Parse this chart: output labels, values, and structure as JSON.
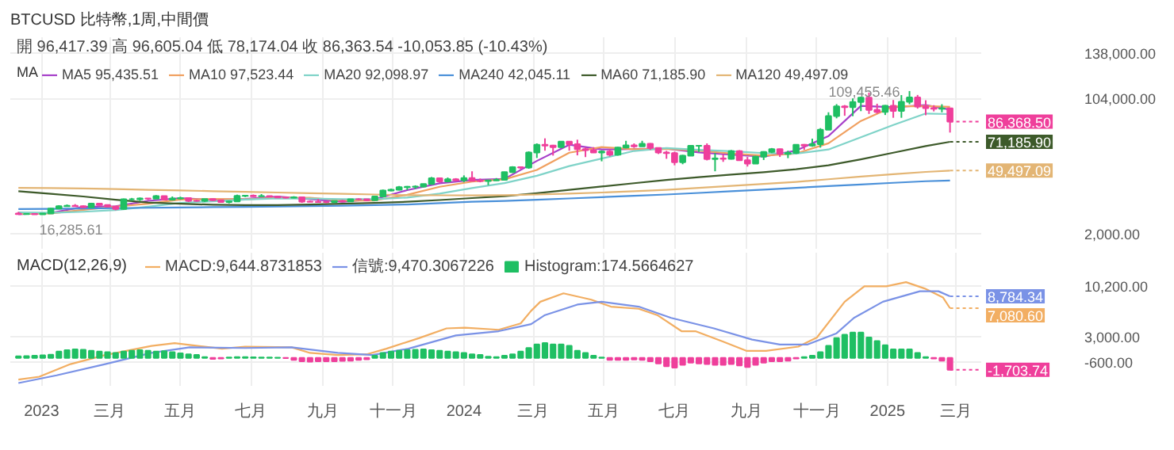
{
  "chart_data": [
    {
      "type": "candlestick",
      "title": "BTCUSD 比特幣,1周,中間價",
      "legend_title": "MA",
      "legend": "top left",
      "grid": true,
      "tick_labels": "y",
      "xlim": [
        "2022-12-05",
        "2025-03-23"
      ],
      "ylim": [
        -10000,
        150000
      ],
      "xticks": [
        {
          "value": "2023-01-01",
          "label": null
        },
        {
          "value": "2023-03-01",
          "label": null
        },
        {
          "value": "2023-05-01",
          "label": null
        },
        {
          "value": "2023-07-01",
          "label": null
        },
        {
          "value": "2023-09-01",
          "label": null
        },
        {
          "value": "2023-11-01",
          "label": null
        },
        {
          "value": "2024-01-01",
          "label": null
        },
        {
          "value": "2024-03-01",
          "label": null
        },
        {
          "value": "2024-05-01",
          "label": null
        },
        {
          "value": "2024-07-01",
          "label": null
        },
        {
          "value": "2024-09-01",
          "label": null
        },
        {
          "value": "2024-11-01",
          "label": null
        },
        {
          "value": "2025-01-01",
          "label": null
        },
        {
          "value": "2025-03-01",
          "label": null
        }
      ],
      "yticks": [
        {
          "value": 2000,
          "label": "2,000.00"
        },
        {
          "value": 104000,
          "label": "104,000.00"
        },
        {
          "value": 138000,
          "label": "138,000.00"
        }
      ],
      "annotations": [
        "開 96,417.39 高 96,605.04 低 78,174.04 收 86,363.54 -10,053.85 (-10.43%)",
        {
          "text": "109,455.46",
          "x": "2025-01-20",
          "y": 109455.46
        },
        {
          "text": "16,285.61",
          "x": "2022-12-19",
          "y": 16285.61
        },
        {
          "text": "86,368.50",
          "x": "2025-02-24",
          "y": 86368.5
        },
        {
          "text": "71,185.90",
          "x": "2025-02-24",
          "y": 71185.9
        },
        {
          "text": "49,497.09",
          "x": "2025-02-24",
          "y": 49497.09
        }
      ],
      "x": [
        "2022-12-12",
        "2022-12-19",
        "2022-12-26",
        "2023-01-02",
        "2023-01-09",
        "2023-01-16",
        "2023-01-23",
        "2023-01-30",
        "2023-02-06",
        "2023-02-13",
        "2023-02-20",
        "2023-02-27",
        "2023-03-06",
        "2023-03-13",
        "2023-03-20",
        "2023-03-27",
        "2023-04-03",
        "2023-04-10",
        "2023-04-17",
        "2023-04-24",
        "2023-05-01",
        "2023-05-08",
        "2023-05-15",
        "2023-05-22",
        "2023-05-29",
        "2023-06-05",
        "2023-06-12",
        "2023-06-19",
        "2023-06-26",
        "2023-07-03",
        "2023-07-10",
        "2023-07-17",
        "2023-07-24",
        "2023-07-31",
        "2023-08-07",
        "2023-08-14",
        "2023-08-21",
        "2023-08-28",
        "2023-09-04",
        "2023-09-11",
        "2023-09-18",
        "2023-09-25",
        "2023-10-02",
        "2023-10-09",
        "2023-10-16",
        "2023-10-23",
        "2023-10-30",
        "2023-11-06",
        "2023-11-13",
        "2023-11-20",
        "2023-11-27",
        "2023-12-04",
        "2023-12-11",
        "2023-12-18",
        "2023-12-25",
        "2024-01-01",
        "2024-01-08",
        "2024-01-15",
        "2024-01-22",
        "2024-01-29",
        "2024-02-05",
        "2024-02-12",
        "2024-02-19",
        "2024-02-26",
        "2024-03-04",
        "2024-03-11",
        "2024-03-18",
        "2024-03-25",
        "2024-04-01",
        "2024-04-08",
        "2024-04-15",
        "2024-04-22",
        "2024-04-29",
        "2024-05-06",
        "2024-05-13",
        "2024-05-20",
        "2024-05-27",
        "2024-06-03",
        "2024-06-10",
        "2024-06-17",
        "2024-06-24",
        "2024-07-01",
        "2024-07-08",
        "2024-07-15",
        "2024-07-22",
        "2024-07-29",
        "2024-08-05",
        "2024-08-12",
        "2024-08-19",
        "2024-08-26",
        "2024-09-02",
        "2024-09-09",
        "2024-09-16",
        "2024-09-23",
        "2024-09-30",
        "2024-10-07",
        "2024-10-14",
        "2024-10-21",
        "2024-10-28",
        "2024-11-04",
        "2024-11-11",
        "2024-11-18",
        "2024-11-25",
        "2024-12-02",
        "2024-12-09",
        "2024-12-16",
        "2024-12-23",
        "2024-12-30",
        "2025-01-06",
        "2025-01-13",
        "2025-01-20",
        "2025-01-27",
        "2025-02-03",
        "2025-02-10",
        "2025-02-17",
        "2025-02-24"
      ],
      "ohlc": [
        [
          17100,
          18400,
          16600,
          16750
        ],
        [
          16750,
          17000,
          16285.61,
          16840
        ],
        [
          16840,
          16970,
          16330,
          16610
        ],
        [
          16610,
          17400,
          16550,
          17130
        ],
        [
          17130,
          21260,
          17100,
          20870
        ],
        [
          20870,
          23370,
          20400,
          22700
        ],
        [
          22700,
          23950,
          22300,
          23030
        ],
        [
          23030,
          24250,
          22500,
          22760
        ],
        [
          22760,
          23200,
          21500,
          21770
        ],
        [
          21770,
          25250,
          21400,
          24630
        ],
        [
          24630,
          25100,
          23100,
          23550
        ],
        [
          23550,
          23900,
          21900,
          22430
        ],
        [
          22430,
          22600,
          19600,
          20630
        ],
        [
          20630,
          28400,
          20100,
          27950
        ],
        [
          27950,
          28900,
          26700,
          27950
        ],
        [
          27950,
          29200,
          26600,
          28450
        ],
        [
          28450,
          28800,
          27300,
          28320
        ],
        [
          28320,
          31000,
          28200,
          30300
        ],
        [
          30300,
          30500,
          27200,
          27590
        ],
        [
          27590,
          30000,
          26950,
          28470
        ],
        [
          28470,
          29850,
          27700,
          28850
        ],
        [
          28850,
          29000,
          25800,
          26780
        ],
        [
          26780,
          27600,
          26100,
          26750
        ],
        [
          26750,
          28200,
          25900,
          28080
        ],
        [
          28080,
          28400,
          26600,
          27120
        ],
        [
          27120,
          27200,
          25350,
          25840
        ],
        [
          25840,
          26800,
          24800,
          26340
        ],
        [
          26340,
          31400,
          26250,
          30470
        ],
        [
          30470,
          31000,
          29500,
          30580
        ],
        [
          30580,
          31500,
          29700,
          30170
        ],
        [
          30170,
          31800,
          29900,
          30290
        ],
        [
          30290,
          30400,
          29500,
          29860
        ],
        [
          29860,
          30000,
          28900,
          29270
        ],
        [
          29270,
          29800,
          28600,
          29040
        ],
        [
          29040,
          30200,
          28700,
          29410
        ],
        [
          29410,
          29700,
          25200,
          26100
        ],
        [
          26100,
          26800,
          25800,
          26010
        ],
        [
          26010,
          28150,
          25400,
          25850
        ],
        [
          25850,
          26100,
          24900,
          25840
        ],
        [
          25840,
          27000,
          24900,
          26530
        ],
        [
          26530,
          27400,
          26000,
          26250
        ],
        [
          26250,
          28100,
          26000,
          27970
        ],
        [
          27970,
          28600,
          27200,
          27940
        ],
        [
          27940,
          28000,
          26600,
          27150
        ],
        [
          27150,
          30200,
          26900,
          29990
        ],
        [
          29990,
          35200,
          29800,
          34500
        ],
        [
          34500,
          35900,
          33900,
          35010
        ],
        [
          35010,
          37900,
          34600,
          37060
        ],
        [
          37060,
          37900,
          34900,
          37360
        ],
        [
          37360,
          38400,
          35700,
          37450
        ],
        [
          37450,
          39600,
          36900,
          39460
        ],
        [
          39460,
          44700,
          39300,
          43790
        ],
        [
          43790,
          44000,
          40200,
          41370
        ],
        [
          41370,
          44300,
          40600,
          42990
        ],
        [
          42990,
          43800,
          41500,
          42270
        ],
        [
          42270,
          45900,
          40800,
          43940
        ],
        [
          43940,
          48970,
          41500,
          41730
        ],
        [
          41730,
          43500,
          40700,
          41580
        ],
        [
          41580,
          42200,
          38500,
          42030
        ],
        [
          42030,
          43880,
          41800,
          42580
        ],
        [
          42580,
          48600,
          42300,
          48300
        ],
        [
          48300,
          52800,
          47700,
          52140
        ],
        [
          52140,
          52500,
          50600,
          51730
        ],
        [
          51730,
          64000,
          50900,
          63110
        ],
        [
          63110,
          69990,
          59000,
          68960
        ],
        [
          68960,
          73800,
          64500,
          68390
        ],
        [
          68390,
          68900,
          60800,
          67230
        ],
        [
          67230,
          71700,
          66500,
          71280
        ],
        [
          71280,
          71300,
          64500,
          69360
        ],
        [
          69360,
          72800,
          61000,
          65660
        ],
        [
          65660,
          66900,
          59700,
          64940
        ],
        [
          64940,
          67200,
          62800,
          63120
        ],
        [
          63120,
          64700,
          56500,
          63890
        ],
        [
          63890,
          65500,
          60200,
          61480
        ],
        [
          61480,
          67400,
          60800,
          66940
        ],
        [
          66940,
          71950,
          66300,
          68520
        ],
        [
          68520,
          70000,
          66600,
          67760
        ],
        [
          67760,
          71950,
          67600,
          69650
        ],
        [
          69650,
          70200,
          65100,
          66640
        ],
        [
          66640,
          66900,
          62000,
          63180
        ],
        [
          63180,
          64400,
          58400,
          62680
        ],
        [
          62680,
          63800,
          53500,
          55850
        ],
        [
          55850,
          61400,
          54300,
          60810
        ],
        [
          60810,
          68400,
          60600,
          68160
        ],
        [
          68160,
          68500,
          63500,
          68250
        ],
        [
          68250,
          70000,
          57200,
          58160
        ],
        [
          58160,
          62700,
          49000,
          58710
        ],
        [
          58710,
          61800,
          56100,
          58400
        ],
        [
          58400,
          65000,
          57900,
          64220
        ],
        [
          64220,
          64900,
          57200,
          57300
        ],
        [
          57300,
          59800,
          52550,
          54850
        ],
        [
          54850,
          60650,
          54600,
          59990
        ],
        [
          59990,
          64100,
          57500,
          63630
        ],
        [
          63630,
          66500,
          62700,
          65600
        ],
        [
          65600,
          66000,
          59800,
          62050
        ],
        [
          62050,
          64500,
          58900,
          62870
        ],
        [
          62870,
          69400,
          62000,
          69000
        ],
        [
          69000,
          69500,
          65100,
          68370
        ],
        [
          68370,
          73600,
          67500,
          69350
        ],
        [
          69350,
          81500,
          66800,
          80370
        ],
        [
          80370,
          93450,
          80200,
          90600
        ],
        [
          90600,
          99600,
          88900,
          97900
        ],
        [
          97900,
          98900,
          90800,
          97250
        ],
        [
          97250,
          103900,
          90500,
          101120
        ],
        [
          101120,
          105200,
          94300,
          104460
        ],
        [
          104460,
          108300,
          92200,
          95180
        ],
        [
          95180,
          99900,
          92500,
          93720
        ],
        [
          93720,
          98900,
          91400,
          98350
        ],
        [
          98350,
          102700,
          89300,
          94500
        ],
        [
          94500,
          106400,
          89300,
          101300
        ],
        [
          101300,
          109455.46,
          99500,
          104700
        ],
        [
          104700,
          106500,
          96200,
          97700
        ],
        [
          97700,
          102500,
          91200,
          96500
        ],
        [
          96500,
          98800,
          94100,
          96100
        ],
        [
          96100,
          99500,
          93400,
          96417.39
        ],
        [
          96417.39,
          96605.04,
          78174.04,
          86363.54
        ]
      ],
      "colors": [
        "#ef3f9b",
        "#1fbf63",
        "#ef3f9b",
        "#1fbf63",
        "#1fbf63",
        "#1fbf63",
        "#1fbf63",
        "#ef3f9b",
        "#ef3f9b",
        "#1fbf63",
        "#ef3f9b",
        "#ef3f9b",
        "#ef3f9b",
        "#1fbf63",
        "#1fbf63",
        "#1fbf63",
        "#ef3f9b",
        "#1fbf63",
        "#ef3f9b",
        "#1fbf63",
        "#1fbf63",
        "#ef3f9b",
        "#ef3f9b",
        "#1fbf63",
        "#ef3f9b",
        "#ef3f9b",
        "#1fbf63",
        "#1fbf63",
        "#1fbf63",
        "#ef3f9b",
        "#1fbf63",
        "#ef3f9b",
        "#ef3f9b",
        "#ef3f9b",
        "#1fbf63",
        "#ef3f9b",
        "#ef3f9b",
        "#ef3f9b",
        "#ef3f9b",
        "#1fbf63",
        "#ef3f9b",
        "#1fbf63",
        "#ef3f9b",
        "#ef3f9b",
        "#1fbf63",
        "#1fbf63",
        "#1fbf63",
        "#1fbf63",
        "#1fbf63",
        "#1fbf63",
        "#1fbf63",
        "#1fbf63",
        "#ef3f9b",
        "#1fbf63",
        "#ef3f9b",
        "#1fbf63",
        "#ef3f9b",
        "#ef3f9b",
        "#1fbf63",
        "#1fbf63",
        "#1fbf63",
        "#1fbf63",
        "#ef3f9b",
        "#1fbf63",
        "#1fbf63",
        "#ef3f9b",
        "#ef3f9b",
        "#1fbf63",
        "#ef3f9b",
        "#ef3f9b",
        "#ef3f9b",
        "#ef3f9b",
        "#1fbf63",
        "#ef3f9b",
        "#1fbf63",
        "#1fbf63",
        "#ef3f9b",
        "#1fbf63",
        "#ef3f9b",
        "#ef3f9b",
        "#ef3f9b",
        "#ef3f9b",
        "#1fbf63",
        "#1fbf63",
        "#1fbf63",
        "#ef3f9b",
        "#1fbf63",
        "#ef3f9b",
        "#1fbf63",
        "#ef3f9b",
        "#ef3f9b",
        "#1fbf63",
        "#1fbf63",
        "#1fbf63",
        "#ef3f9b",
        "#1fbf63",
        "#1fbf63",
        "#ef3f9b",
        "#1fbf63",
        "#1fbf63",
        "#1fbf63",
        "#1fbf63",
        "#ef3f9b",
        "#1fbf63",
        "#1fbf63",
        "#ef3f9b",
        "#ef3f9b",
        "#1fbf63",
        "#ef3f9b",
        "#1fbf63",
        "#1fbf63",
        "#ef3f9b",
        "#ef3f9b",
        "#ef3f9b",
        "#1fbf63",
        "#ef3f9b"
      ],
      "series": [
        {
          "name": "MA5 95,435.51",
          "type": "line",
          "color": "#a63fc9",
          "x": [
            "2022-12-12",
            "2023-01-09",
            "2023-02-06",
            "2023-03-06",
            "2023-04-03",
            "2023-05-01",
            "2023-05-29",
            "2023-06-26",
            "2023-07-24",
            "2023-08-21",
            "2023-09-18",
            "2023-10-16",
            "2023-11-13",
            "2023-12-11",
            "2024-01-08",
            "2024-02-05",
            "2024-03-04",
            "2024-04-01",
            "2024-04-29",
            "2024-05-27",
            "2024-06-24",
            "2024-07-22",
            "2024-08-19",
            "2024-09-16",
            "2024-10-14",
            "2024-11-11",
            "2024-12-09",
            "2025-01-06",
            "2025-02-03",
            "2025-02-24"
          ],
          "values": [
            16700,
            17600,
            22200,
            22600,
            26700,
            28700,
            27500,
            28100,
            30000,
            28000,
            26100,
            27900,
            34800,
            39900,
            42500,
            43200,
            56800,
            69000,
            65400,
            65700,
            66000,
            63200,
            61500,
            60000,
            64600,
            75500,
            98300,
            97200,
            98900,
            95435.51
          ]
        },
        {
          "name": "MA10 97,523.44",
          "type": "line",
          "color": "#f0a060",
          "x": [
            "2022-12-12",
            "2023-01-09",
            "2023-02-06",
            "2023-03-06",
            "2023-04-03",
            "2023-05-01",
            "2023-05-29",
            "2023-06-26",
            "2023-07-24",
            "2023-08-21",
            "2023-09-18",
            "2023-10-16",
            "2023-11-13",
            "2023-12-11",
            "2024-01-08",
            "2024-02-05",
            "2024-03-04",
            "2024-04-01",
            "2024-04-29",
            "2024-05-27",
            "2024-06-24",
            "2024-07-22",
            "2024-08-19",
            "2024-09-16",
            "2024-10-14",
            "2024-11-11",
            "2024-12-09",
            "2025-01-06",
            "2025-02-03",
            "2025-02-24"
          ],
          "values": [
            16900,
            17200,
            19900,
            22400,
            24600,
            27700,
            28100,
            27800,
            29100,
            29000,
            27000,
            27000,
            31300,
            37300,
            41200,
            42900,
            50000,
            63000,
            67200,
            65600,
            65900,
            64600,
            62400,
            60800,
            62300,
            70100,
            86900,
            97800,
            98100,
            97523.44
          ]
        },
        {
          "name": "MA20 92,098.97",
          "type": "line",
          "color": "#7fd3c8",
          "x": [
            "2022-12-12",
            "2023-01-09",
            "2023-02-06",
            "2023-03-06",
            "2023-04-03",
            "2023-05-01",
            "2023-05-29",
            "2023-06-26",
            "2023-07-24",
            "2023-08-21",
            "2023-09-18",
            "2023-10-16",
            "2023-11-13",
            "2023-12-11",
            "2024-01-08",
            "2024-02-05",
            "2024-03-04",
            "2024-04-01",
            "2024-04-29",
            "2024-05-27",
            "2024-06-24",
            "2024-07-22",
            "2024-08-19",
            "2024-09-16",
            "2024-10-14",
            "2024-11-11",
            "2024-12-09",
            "2025-01-06",
            "2025-02-03",
            "2025-02-24"
          ],
          "values": [
            18000,
            17700,
            18500,
            19800,
            22300,
            25100,
            26400,
            27700,
            28600,
            28400,
            28000,
            28000,
            29200,
            32200,
            36300,
            40100,
            45600,
            52900,
            58600,
            64300,
            66500,
            65100,
            64100,
            62700,
            62300,
            65400,
            74600,
            83900,
            92500,
            92098.97
          ]
        },
        {
          "name": "MA240 42,045.11",
          "type": "line",
          "color": "#4a90d9",
          "x": [
            "2022-12-12",
            "2023-01-09",
            "2023-02-06",
            "2023-03-06",
            "2023-04-03",
            "2023-05-01",
            "2023-05-29",
            "2023-06-26",
            "2023-07-24",
            "2023-08-21",
            "2023-09-18",
            "2023-10-16",
            "2023-11-13",
            "2023-12-11",
            "2024-01-08",
            "2024-02-05",
            "2024-03-04",
            "2024-04-01",
            "2024-04-29",
            "2024-05-27",
            "2024-06-24",
            "2024-07-22",
            "2024-08-19",
            "2024-09-16",
            "2024-10-14",
            "2024-11-11",
            "2024-12-09",
            "2025-01-06",
            "2025-02-03",
            "2025-02-24"
          ],
          "values": [
            20500,
            20700,
            21000,
            21200,
            21500,
            21700,
            22000,
            22200,
            22500,
            22800,
            23100,
            23500,
            24000,
            25000,
            26000,
            26700,
            27500,
            28500,
            29500,
            30500,
            31500,
            32700,
            34000,
            35200,
            36500,
            37800,
            39000,
            40300,
            41500,
            42045.11
          ]
        },
        {
          "name": "MA60 71,185.90",
          "type": "line",
          "color": "#3d5a2a",
          "x": [
            "2022-12-12",
            "2023-01-09",
            "2023-02-06",
            "2023-03-06",
            "2023-04-03",
            "2023-05-01",
            "2023-05-29",
            "2023-06-26",
            "2023-07-24",
            "2023-08-21",
            "2023-09-18",
            "2023-10-16",
            "2023-11-13",
            "2023-12-11",
            "2024-01-08",
            "2024-02-05",
            "2024-03-04",
            "2024-04-01",
            "2024-04-29",
            "2024-05-27",
            "2024-06-24",
            "2024-07-22",
            "2024-08-19",
            "2024-09-16",
            "2024-10-14",
            "2024-11-11",
            "2024-12-09",
            "2025-01-06",
            "2025-02-03",
            "2025-02-24"
          ],
          "values": [
            34000,
            32000,
            30000,
            27500,
            25500,
            24500,
            23800,
            23500,
            23500,
            24000,
            24600,
            25200,
            26000,
            27300,
            28800,
            30200,
            32500,
            35000,
            37500,
            40000,
            42500,
            44500,
            46500,
            48300,
            50500,
            53500,
            58000,
            63000,
            68000,
            71185.9
          ]
        },
        {
          "name": "MA120 49,497.09",
          "type": "line",
          "color": "#e3b574",
          "x": [
            "2022-12-12",
            "2023-01-09",
            "2023-02-06",
            "2023-03-06",
            "2023-04-03",
            "2023-05-01",
            "2023-05-29",
            "2023-06-26",
            "2023-07-24",
            "2023-08-21",
            "2023-09-18",
            "2023-10-16",
            "2023-11-13",
            "2023-12-11",
            "2024-01-08",
            "2024-02-05",
            "2024-03-04",
            "2024-04-01",
            "2024-04-29",
            "2024-05-27",
            "2024-06-24",
            "2024-07-22",
            "2024-08-19",
            "2024-09-16",
            "2024-10-14",
            "2024-11-11",
            "2024-12-09",
            "2025-01-06",
            "2025-02-03",
            "2025-02-24"
          ],
          "values": [
            36500,
            36300,
            36000,
            35600,
            35000,
            34600,
            34000,
            33500,
            33000,
            32500,
            32000,
            31500,
            31000,
            30900,
            30800,
            31000,
            31500,
            32200,
            33000,
            34000,
            35000,
            36500,
            38000,
            39500,
            41000,
            43000,
            45000,
            46800,
            48500,
            49497.09
          ]
        }
      ]
    },
    {
      "type": "bar",
      "legend_title": "MACD(12,26,9)",
      "legend": "top left",
      "grid": true,
      "xlim": [
        "2022-12-05",
        "2025-03-23"
      ],
      "ylim": [
        -4000,
        15000
      ],
      "xticks": [
        {
          "value": "2023-01-01",
          "label": "2023"
        },
        {
          "value": "2023-03-01",
          "label": "三月"
        },
        {
          "value": "2023-05-01",
          "label": "五月"
        },
        {
          "value": "2023-07-01",
          "label": "七月"
        },
        {
          "value": "2023-09-01",
          "label": "九月"
        },
        {
          "value": "2023-11-01",
          "label": "十一月"
        },
        {
          "value": "2024-01-01",
          "label": "2024"
        },
        {
          "value": "2024-03-01",
          "label": "三月"
        },
        {
          "value": "2024-05-01",
          "label": "五月"
        },
        {
          "value": "2024-07-01",
          "label": "七月"
        },
        {
          "value": "2024-09-01",
          "label": "九月"
        },
        {
          "value": "2024-11-01",
          "label": "十一月"
        },
        {
          "value": "2025-01-01",
          "label": "2025"
        },
        {
          "value": "2025-03-01",
          "label": "三月"
        }
      ],
      "yticks": [
        {
          "value": -600,
          "label": "-600.00"
        },
        {
          "value": 3000,
          "label": "3,000.00"
        },
        {
          "value": 10200,
          "label": "10,200.00"
        }
      ],
      "annotations": [
        {
          "text": "8,784.34",
          "x": "2025-02-24",
          "y": 8784.34
        },
        {
          "text": "7,080.60",
          "x": "2025-02-24",
          "y": 7080.6
        },
        {
          "text": "-1,703.74",
          "x": "2025-02-24",
          "y": -1703.74
        }
      ],
      "x": [
        "2022-12-12",
        "2022-12-19",
        "2022-12-26",
        "2023-01-02",
        "2023-01-09",
        "2023-01-16",
        "2023-01-23",
        "2023-01-30",
        "2023-02-06",
        "2023-02-13",
        "2023-02-20",
        "2023-02-27",
        "2023-03-06",
        "2023-03-13",
        "2023-03-20",
        "2023-03-27",
        "2023-04-03",
        "2023-04-10",
        "2023-04-17",
        "2023-04-24",
        "2023-05-01",
        "2023-05-08",
        "2023-05-15",
        "2023-05-22",
        "2023-05-29",
        "2023-06-05",
        "2023-06-12",
        "2023-06-19",
        "2023-06-26",
        "2023-07-03",
        "2023-07-10",
        "2023-07-17",
        "2023-07-24",
        "2023-07-31",
        "2023-08-07",
        "2023-08-14",
        "2023-08-21",
        "2023-08-28",
        "2023-09-04",
        "2023-09-11",
        "2023-09-18",
        "2023-09-25",
        "2023-10-02",
        "2023-10-09",
        "2023-10-16",
        "2023-10-23",
        "2023-10-30",
        "2023-11-06",
        "2023-11-13",
        "2023-11-20",
        "2023-11-27",
        "2023-12-04",
        "2023-12-11",
        "2023-12-18",
        "2023-12-25",
        "2024-01-01",
        "2024-01-08",
        "2024-01-15",
        "2024-01-22",
        "2024-01-29",
        "2024-02-05",
        "2024-02-12",
        "2024-02-19",
        "2024-02-26",
        "2024-03-04",
        "2024-03-11",
        "2024-03-18",
        "2024-03-25",
        "2024-04-01",
        "2024-04-08",
        "2024-04-15",
        "2024-04-22",
        "2024-04-29",
        "2024-05-06",
        "2024-05-13",
        "2024-05-20",
        "2024-05-27",
        "2024-06-03",
        "2024-06-10",
        "2024-06-17",
        "2024-06-24",
        "2024-07-01",
        "2024-07-08",
        "2024-07-15",
        "2024-07-22",
        "2024-07-29",
        "2024-08-05",
        "2024-08-12",
        "2024-08-19",
        "2024-08-26",
        "2024-09-02",
        "2024-09-09",
        "2024-09-16",
        "2024-09-23",
        "2024-09-30",
        "2024-10-07",
        "2024-10-14",
        "2024-10-21",
        "2024-10-28",
        "2024-11-04",
        "2024-11-11",
        "2024-11-18",
        "2024-11-25",
        "2024-12-02",
        "2024-12-09",
        "2024-12-16",
        "2024-12-23",
        "2024-12-30",
        "2025-01-06",
        "2025-01-13",
        "2025-01-20",
        "2025-01-27",
        "2025-02-03",
        "2025-02-10",
        "2025-02-17",
        "2025-02-24"
      ],
      "series": [
        {
          "name": "MACD:9,644.8731853",
          "type": "line",
          "color": "#f2ae62",
          "x": [
            "2022-12-12",
            "2022-12-30",
            "2023-01-26",
            "2023-02-25",
            "2023-04-06",
            "2023-04-26",
            "2023-05-16",
            "2023-06-06",
            "2023-06-26",
            "2023-08-05",
            "2023-08-21",
            "2023-09-14",
            "2023-10-09",
            "2023-10-26",
            "2023-11-23",
            "2023-12-17",
            "2024-01-02",
            "2024-01-31",
            "2024-02-19",
            "2024-02-28",
            "2024-03-07",
            "2024-03-27",
            "2024-04-20",
            "2024-05-07",
            "2024-05-31",
            "2024-06-16",
            "2024-07-07",
            "2024-07-19",
            "2024-08-12",
            "2024-09-01",
            "2024-09-18",
            "2024-10-16",
            "2024-11-01",
            "2024-11-25",
            "2024-12-12",
            "2024-12-31",
            "2025-01-17",
            "2025-02-02",
            "2025-02-18",
            "2025-02-24"
          ],
          "values": [
            -3100,
            -2700,
            -900,
            400,
            1700,
            2100,
            1700,
            1300,
            1600,
            1500,
            700,
            400,
            500,
            1300,
            2800,
            4200,
            4300,
            4000,
            4900,
            6700,
            8000,
            9200,
            8300,
            7300,
            7000,
            6100,
            3800,
            3800,
            2300,
            1000,
            1000,
            1600,
            2900,
            8000,
            10200,
            10200,
            10800,
            9900,
            8600,
            7080.6
          ]
        },
        {
          "name": "信號:9,470.3067226",
          "type": "line",
          "color": "#7a92e6",
          "x": [
            "2022-12-12",
            "2023-01-14",
            "2023-02-25",
            "2023-04-06",
            "2023-05-09",
            "2023-06-26",
            "2023-08-05",
            "2023-09-14",
            "2023-10-14",
            "2023-11-14",
            "2023-12-25",
            "2024-01-31",
            "2024-02-28",
            "2024-03-11",
            "2024-04-08",
            "2024-04-29",
            "2024-05-31",
            "2024-06-28",
            "2024-08-04",
            "2024-09-06",
            "2024-09-30",
            "2024-10-24",
            "2024-11-18",
            "2024-12-03",
            "2024-12-28",
            "2025-01-29",
            "2025-02-14",
            "2025-02-24"
          ],
          "values": [
            -3600,
            -2500,
            -900,
            700,
            1500,
            1400,
            1500,
            700,
            400,
            1300,
            3200,
            3800,
            4800,
            6100,
            7600,
            8000,
            7300,
            5700,
            4200,
            2600,
            1900,
            1900,
            3500,
            5700,
            8000,
            9500,
            9500,
            8784.34
          ]
        },
        {
          "name": "Histogram:174.5664627",
          "values": [
            200,
            250,
            300,
            350,
            450,
            900,
            1100,
            1200,
            1150,
            1000,
            900,
            800,
            700,
            900,
            1000,
            1100,
            1000,
            900,
            950,
            800,
            650,
            500,
            400,
            100,
            -150,
            -100,
            50,
            100,
            100,
            80,
            50,
            30,
            20,
            -50,
            -300,
            -500,
            -550,
            -500,
            -480,
            -500,
            -450,
            -400,
            -300,
            -200,
            300,
            700,
            900,
            1000,
            1100,
            1150,
            1200,
            1100,
            1000,
            900,
            800,
            700,
            500,
            400,
            150,
            100,
            300,
            500,
            900,
            1400,
            1900,
            2100,
            1900,
            1900,
            1700,
            1000,
            700,
            300,
            50,
            -300,
            -300,
            -300,
            -250,
            -300,
            -500,
            -800,
            -1200,
            -1400,
            -1000,
            -700,
            -800,
            -900,
            -1000,
            -1000,
            -900,
            -1100,
            -1300,
            -1000,
            -700,
            -500,
            -500,
            -400,
            -100,
            100,
            300,
            800,
            1700,
            2800,
            3300,
            3600,
            3600,
            2900,
            2400,
            1800,
            1200,
            1200,
            1200,
            700,
            100,
            -100,
            -400,
            -1703.74
          ],
          "colors": [
            "#1fbf63",
            "#1fbf63",
            "#1fbf63",
            "#1fbf63",
            "#1fbf63",
            "#1fbf63",
            "#1fbf63",
            "#1fbf63",
            "#1fbf63",
            "#1fbf63",
            "#1fbf63",
            "#1fbf63",
            "#1fbf63",
            "#1fbf63",
            "#1fbf63",
            "#1fbf63",
            "#1fbf63",
            "#1fbf63",
            "#1fbf63",
            "#1fbf63",
            "#1fbf63",
            "#1fbf63",
            "#1fbf63",
            "#1fbf63",
            "#ef3f9b",
            "#ef3f9b",
            "#1fbf63",
            "#1fbf63",
            "#1fbf63",
            "#1fbf63",
            "#1fbf63",
            "#1fbf63",
            "#1fbf63",
            "#ef3f9b",
            "#ef3f9b",
            "#ef3f9b",
            "#ef3f9b",
            "#ef3f9b",
            "#ef3f9b",
            "#ef3f9b",
            "#ef3f9b",
            "#ef3f9b",
            "#ef3f9b",
            "#ef3f9b",
            "#1fbf63",
            "#1fbf63",
            "#1fbf63",
            "#1fbf63",
            "#1fbf63",
            "#1fbf63",
            "#1fbf63",
            "#1fbf63",
            "#1fbf63",
            "#1fbf63",
            "#1fbf63",
            "#1fbf63",
            "#1fbf63",
            "#1fbf63",
            "#1fbf63",
            "#1fbf63",
            "#1fbf63",
            "#1fbf63",
            "#1fbf63",
            "#1fbf63",
            "#1fbf63",
            "#1fbf63",
            "#1fbf63",
            "#1fbf63",
            "#1fbf63",
            "#1fbf63",
            "#1fbf63",
            "#1fbf63",
            "#1fbf63",
            "#ef3f9b",
            "#ef3f9b",
            "#ef3f9b",
            "#ef3f9b",
            "#ef3f9b",
            "#ef3f9b",
            "#ef3f9b",
            "#ef3f9b",
            "#ef3f9b",
            "#ef3f9b",
            "#ef3f9b",
            "#ef3f9b",
            "#ef3f9b",
            "#ef3f9b",
            "#ef3f9b",
            "#ef3f9b",
            "#ef3f9b",
            "#ef3f9b",
            "#ef3f9b",
            "#ef3f9b",
            "#ef3f9b",
            "#ef3f9b",
            "#ef3f9b",
            "#ef3f9b",
            "#1fbf63",
            "#1fbf63",
            "#1fbf63",
            "#1fbf63",
            "#1fbf63",
            "#1fbf63",
            "#1fbf63",
            "#1fbf63",
            "#1fbf63",
            "#1fbf63",
            "#1fbf63",
            "#1fbf63",
            "#1fbf63",
            "#1fbf63",
            "#1fbf63",
            "#1fbf63",
            "#ef3f9b",
            "#ef3f9b",
            "#ef3f9b"
          ]
        }
      ]
    }
  ]
}
